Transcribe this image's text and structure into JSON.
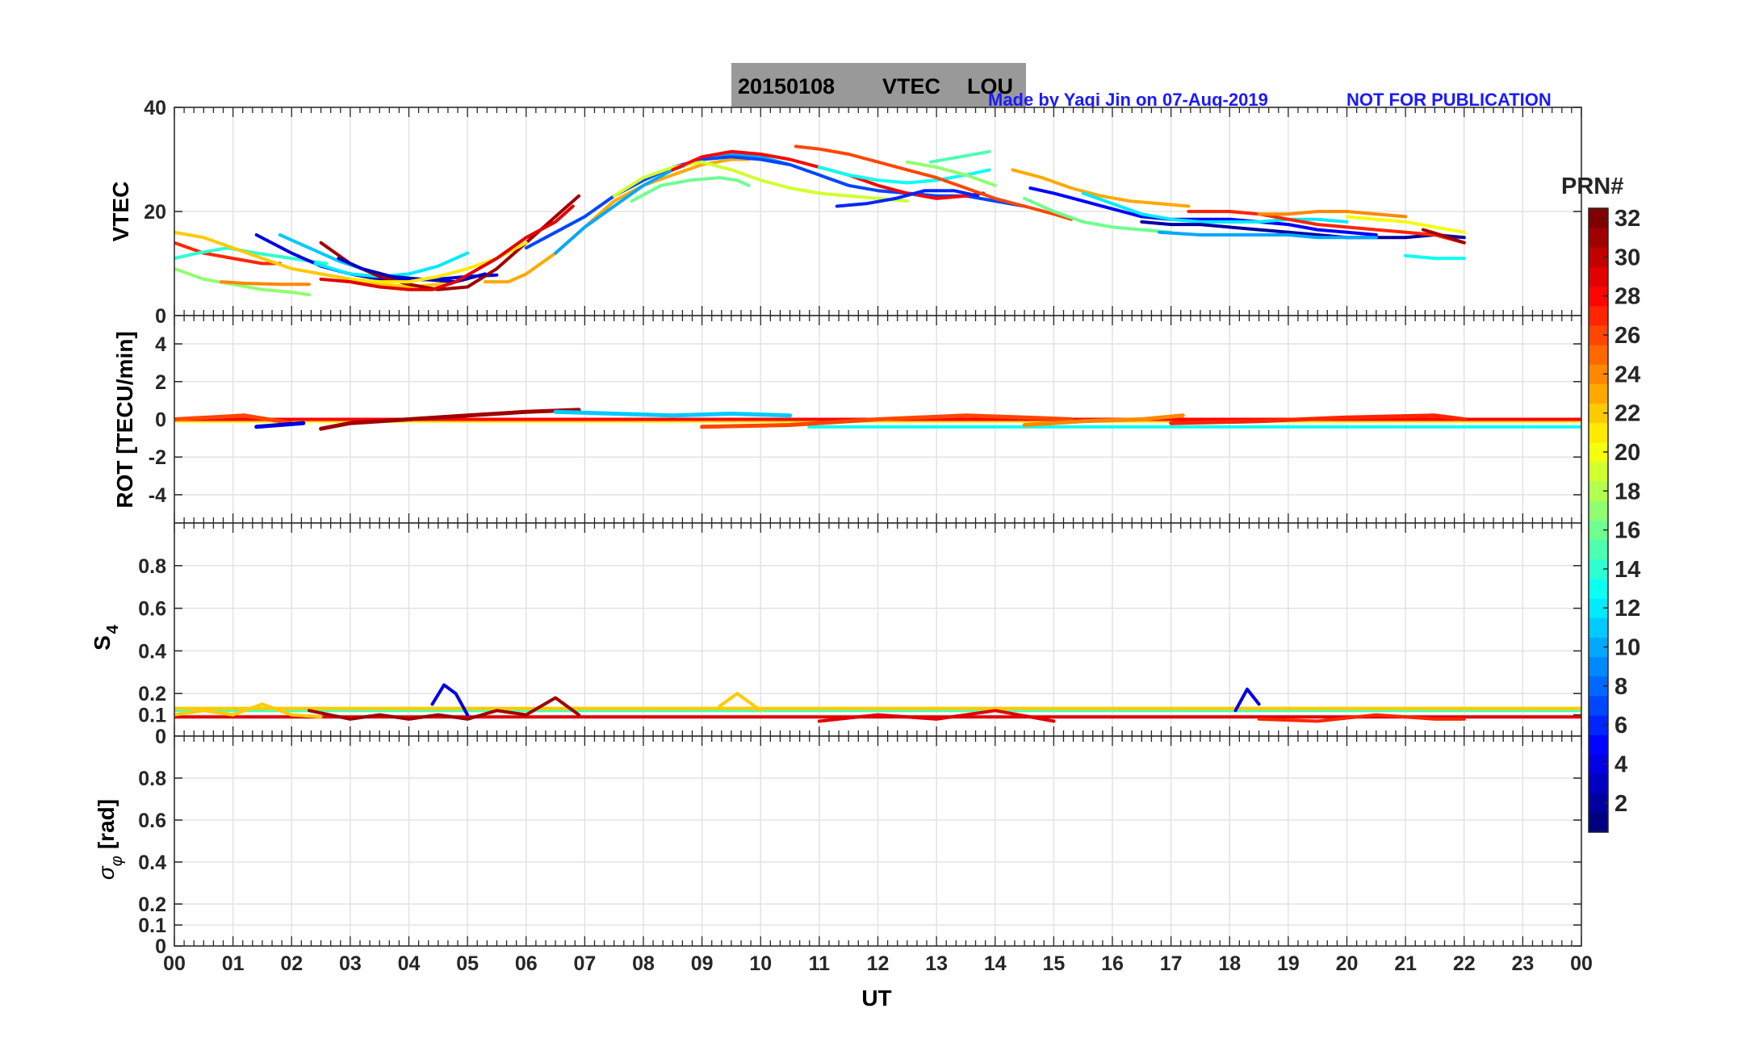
{
  "title": {
    "date": "20150108",
    "product": "VTEC",
    "station": "LOU",
    "credit": "Made by Yaqi Jin on 07-Aug-2019",
    "notice": "NOT FOR PUBLICATION"
  },
  "colorbar": {
    "label": "PRN#",
    "ticks": [
      "2",
      "4",
      "6",
      "8",
      "10",
      "12",
      "14",
      "16",
      "18",
      "20",
      "22",
      "24",
      "26",
      "28",
      "30",
      "32"
    ],
    "range": [
      1,
      32
    ],
    "colormap": "jet"
  },
  "x_axis": {
    "label": "UT",
    "range": [
      0,
      24
    ],
    "ticks": [
      "00",
      "01",
      "02",
      "03",
      "04",
      "05",
      "06",
      "07",
      "08",
      "09",
      "10",
      "11",
      "12",
      "13",
      "14",
      "15",
      "16",
      "17",
      "18",
      "19",
      "20",
      "21",
      "22",
      "23",
      "00"
    ]
  },
  "panels": [
    {
      "id": "vtec",
      "ylabel": "VTEC",
      "ylim": [
        0,
        40
      ],
      "yticks": [
        0,
        20,
        40
      ],
      "ytick_labels": [
        "0",
        "20",
        "40"
      ]
    },
    {
      "id": "rot",
      "ylabel": "ROT [TECU/min]",
      "ylim": [
        -5.5,
        5.5
      ],
      "yticks": [
        -4,
        -2,
        0,
        2,
        4
      ],
      "ytick_labels": [
        "-4",
        "-2",
        "0",
        "2",
        "4"
      ]
    },
    {
      "id": "s4",
      "ylabel": "S",
      "ylabel_sub": "4",
      "ylim": [
        0,
        1
      ],
      "yticks": [
        0,
        0.1,
        0.2,
        0.4,
        0.6,
        0.8
      ],
      "ytick_labels": [
        "0",
        "0.1",
        "0.2",
        "0.4",
        "0.6",
        "0.8"
      ]
    },
    {
      "id": "sigma",
      "ylabel": "σ",
      "ylabel_sub": "φ",
      "ylabel_unit": "[rad]",
      "ylim": [
        0,
        1
      ],
      "yticks": [
        0,
        0.1,
        0.2,
        0.4,
        0.6,
        0.8
      ],
      "ytick_labels": [
        "0",
        "0.1",
        "0.2",
        "0.4",
        "0.6",
        "0.8"
      ]
    }
  ],
  "chart_data": {
    "type": "line",
    "title": "20150108    VTEC  LOU",
    "xlabel": "UT",
    "color_by": "PRN#",
    "vtec_series": [
      {
        "prn": 27,
        "x": [
          0.0,
          0.5,
          1.0,
          1.5,
          1.8
        ],
        "y": [
          14,
          12,
          11,
          10,
          10
        ]
      },
      {
        "prn": 14,
        "x": [
          0.0,
          0.4,
          0.9,
          1.4,
          2.0,
          2.6
        ],
        "y": [
          11,
          12,
          13,
          12,
          11,
          10
        ]
      },
      {
        "prn": 17,
        "x": [
          0.0,
          0.5,
          1.0,
          1.5,
          2.0,
          2.3
        ],
        "y": [
          9,
          7,
          6,
          5,
          4.5,
          4
        ]
      },
      {
        "prn": 22,
        "x": [
          0.0,
          0.5,
          1.0,
          1.5,
          2.0,
          2.5,
          3.0,
          3.5,
          4.0,
          4.5,
          5.0
        ],
        "y": [
          16,
          15,
          13,
          11,
          9,
          8,
          7,
          6,
          5.5,
          6,
          7
        ]
      },
      {
        "prn": 24,
        "x": [
          0.8,
          1.2,
          1.8,
          2.3
        ],
        "y": [
          6.5,
          6.2,
          6,
          6
        ]
      },
      {
        "prn": 4,
        "x": [
          1.4,
          2.0,
          2.5,
          3.0,
          3.5,
          4.0,
          4.5,
          5.0,
          5.5
        ],
        "y": [
          15.5,
          12,
          9.5,
          8,
          7,
          6.8,
          7,
          7.5,
          7.8
        ]
      },
      {
        "prn": 11,
        "x": [
          1.8,
          2.3,
          2.8,
          3.2
        ],
        "y": [
          15.5,
          13,
          10.5,
          9
        ]
      },
      {
        "prn": 12,
        "x": [
          2.4,
          3.0,
          3.5,
          4.0,
          4.5,
          5.0
        ],
        "y": [
          10,
          8,
          7.5,
          8,
          9.5,
          12
        ]
      },
      {
        "prn": 31,
        "x": [
          2.5,
          3.0,
          3.5,
          4.0,
          4.5,
          5.0,
          5.5,
          6.0,
          6.5,
          6.9
        ],
        "y": [
          14,
          10,
          7.5,
          6,
          5,
          5.5,
          9,
          14,
          19,
          23
        ]
      },
      {
        "prn": 3,
        "x": [
          2.8,
          3.2,
          3.7,
          4.2,
          4.8,
          5.3
        ],
        "y": [
          11,
          9,
          7.5,
          7,
          6.5,
          8
        ]
      },
      {
        "prn": 21,
        "x": [
          3.0,
          3.5,
          4.0,
          4.5,
          5.0,
          5.5,
          6.0
        ],
        "y": [
          7,
          6.5,
          6.5,
          7.5,
          9,
          11,
          14
        ]
      },
      {
        "prn": 29,
        "x": [
          2.5,
          3.0,
          3.5,
          4.0,
          4.4,
          4.8,
          5.5,
          6.0,
          6.5,
          6.8
        ],
        "y": [
          7,
          6.5,
          5.5,
          5,
          5,
          6.5,
          11,
          15,
          18,
          21
        ]
      },
      {
        "prn": 23,
        "x": [
          5.3,
          5.7,
          6.0,
          6.5,
          7.0,
          7.5,
          8.0,
          8.5,
          9.0,
          9.5,
          9.8
        ],
        "y": [
          6.5,
          6.5,
          8,
          12,
          17,
          22,
          25,
          27,
          29,
          30,
          30
        ]
      },
      {
        "prn": 10,
        "x": [
          6.5,
          7.0,
          7.5,
          8.0,
          8.5,
          9.0,
          9.5,
          10.0,
          10.5
        ],
        "y": [
          12,
          17,
          21,
          25,
          28,
          30,
          31,
          30.5,
          29
        ]
      },
      {
        "prn": 7,
        "x": [
          6.0,
          6.5,
          7.0,
          7.5,
          8.0,
          8.5,
          9.0,
          9.5,
          10.0,
          10.5,
          11.0,
          11.5,
          12.0,
          12.5,
          13.0,
          13.5,
          14.0,
          14.5
        ],
        "y": [
          13,
          16,
          19,
          23,
          26,
          28.5,
          30,
          30.5,
          30,
          29,
          27,
          25,
          24,
          23.5,
          23,
          23,
          22,
          21
        ]
      },
      {
        "prn": 16,
        "x": [
          7.8,
          8.3,
          8.8,
          9.3,
          9.6,
          9.8
        ],
        "y": [
          22,
          25,
          26,
          26.5,
          26,
          25
        ]
      },
      {
        "prn": 19,
        "x": [
          7.5,
          8.0,
          8.5,
          9.0,
          9.5,
          10.0,
          10.5,
          11.0,
          11.5,
          12.0,
          12.5
        ],
        "y": [
          23,
          26.5,
          28.5,
          29.5,
          28,
          26,
          24.5,
          23.5,
          23,
          22.5,
          22
        ]
      },
      {
        "prn": 28,
        "x": [
          8.5,
          9.0,
          9.5,
          10.0,
          10.5,
          11.0,
          11.5,
          12.0,
          12.5,
          13.0,
          13.5,
          13.8
        ],
        "y": [
          28,
          30.5,
          31.5,
          31,
          30,
          28.5,
          27,
          25,
          23.5,
          22.5,
          23,
          23.5
        ]
      },
      {
        "prn": 6,
        "x": [
          11.3,
          11.8,
          12.3,
          12.8,
          13.3,
          13.7
        ],
        "y": [
          21,
          21.5,
          22.5,
          24,
          24,
          23
        ]
      },
      {
        "prn": 13,
        "x": [
          11.0,
          11.5,
          12.0,
          12.5,
          13.0,
          13.5,
          13.9
        ],
        "y": [
          28.5,
          27,
          26,
          25.5,
          26,
          27,
          28
        ]
      },
      {
        "prn": 15,
        "x": [
          12.9,
          13.4,
          13.9
        ],
        "y": [
          29.5,
          30.5,
          31.5
        ]
      },
      {
        "prn": 17,
        "x": [
          12.5,
          13.0,
          13.5,
          14.0
        ],
        "y": [
          29.5,
          28.5,
          27,
          25
        ]
      },
      {
        "prn": 26,
        "x": [
          10.6,
          11.0,
          11.5,
          12.0,
          12.5,
          13.0,
          13.5,
          14.0,
          14.5,
          15.0,
          15.3
        ],
        "y": [
          32.5,
          32,
          31,
          29.5,
          28,
          26.5,
          24.5,
          22.5,
          21,
          19.5,
          18.5
        ]
      },
      {
        "prn": 23,
        "x": [
          14.3,
          14.8,
          15.3,
          15.8,
          16.3,
          16.8,
          17.3
        ],
        "y": [
          28,
          26.5,
          24.5,
          23,
          22,
          21.5,
          21
        ]
      },
      {
        "prn": 5,
        "x": [
          14.6,
          15.0,
          15.5,
          16.0,
          16.5,
          17.0,
          17.5,
          18.0,
          18.5,
          19.0,
          19.5,
          20.0,
          20.5
        ],
        "y": [
          24.5,
          23.5,
          22,
          20.5,
          19,
          18.5,
          18.5,
          18.5,
          18,
          17.5,
          16.5,
          16,
          15.5
        ]
      },
      {
        "prn": 16,
        "x": [
          14.5,
          15.0,
          15.5,
          16.0,
          16.5,
          17.0
        ],
        "y": [
          22.5,
          20,
          18,
          17,
          16.5,
          16
        ]
      },
      {
        "prn": 12,
        "x": [
          15.5,
          16.0,
          16.5,
          17.0,
          17.5,
          18.0,
          18.5,
          19.0,
          19.5,
          20.0
        ],
        "y": [
          23.5,
          21.5,
          19.5,
          18.5,
          18,
          18,
          18,
          18.5,
          18.5,
          18
        ]
      },
      {
        "prn": 2,
        "x": [
          16.5,
          17.0,
          17.5,
          18.0,
          18.5,
          19.0,
          19.5,
          20.0,
          20.5,
          21.0,
          21.5,
          22.0
        ],
        "y": [
          18,
          17.5,
          17.5,
          17,
          16.5,
          16,
          15.5,
          15,
          15,
          15,
          15.5,
          15
        ]
      },
      {
        "prn": 10,
        "x": [
          16.8,
          17.5,
          18.0,
          18.5,
          19.0,
          19.5,
          20.0,
          20.5
        ],
        "y": [
          16,
          15.5,
          15.5,
          15.5,
          15.5,
          15,
          15,
          15
        ]
      },
      {
        "prn": 27,
        "x": [
          17.3,
          18.0,
          18.5,
          19.0,
          19.5,
          20.0,
          20.5,
          21.0,
          21.5,
          22.0
        ],
        "y": [
          20,
          20,
          19.5,
          18.5,
          17.5,
          17,
          16.5,
          16,
          15.5,
          14
        ]
      },
      {
        "prn": 24,
        "x": [
          18.5,
          19.0,
          19.5,
          20.0,
          20.5,
          21.0
        ],
        "y": [
          19.5,
          19.5,
          20,
          20,
          19.5,
          19
        ]
      },
      {
        "prn": 20,
        "x": [
          20.0,
          20.5,
          21.0,
          21.5,
          22.0
        ],
        "y": [
          19,
          18.5,
          18,
          17,
          16
        ]
      },
      {
        "prn": 13,
        "x": [
          21.0,
          21.5,
          22.0
        ],
        "y": [
          11.5,
          11,
          11
        ]
      },
      {
        "prn": 31,
        "x": [
          21.3,
          21.6,
          22.0
        ],
        "y": [
          16.5,
          15.5,
          14
        ]
      }
    ],
    "rot_baselines": [
      {
        "prn": 13,
        "value": -0.4,
        "x_range": [
          10.8,
          24.0
        ]
      },
      {
        "prn": 20,
        "value": -0.1,
        "x_range": [
          0.0,
          24.0
        ]
      },
      {
        "prn": 22,
        "value": -0.05,
        "x_range": [
          0.0,
          24.0
        ]
      },
      {
        "prn": 28,
        "value": 0.0,
        "x_range": [
          0.0,
          24.0
        ]
      }
    ],
    "rot_series": [
      {
        "prn": 26,
        "x": [
          0.0,
          1.2,
          2.0
        ],
        "y": [
          0,
          0.2,
          -0.2
        ]
      },
      {
        "prn": 4,
        "x": [
          1.4,
          1.8,
          2.2
        ],
        "y": [
          -0.4,
          -0.3,
          -0.2
        ]
      },
      {
        "prn": 31,
        "x": [
          2.5,
          3.0,
          4.0,
          5.0,
          6.0,
          6.9
        ],
        "y": [
          -0.5,
          -0.2,
          0,
          0.2,
          0.4,
          0.5
        ]
      },
      {
        "prn": 11,
        "x": [
          6.5,
          7.5,
          8.5,
          9.5,
          10.5
        ],
        "y": [
          0.4,
          0.3,
          0.2,
          0.3,
          0.2
        ]
      },
      {
        "prn": 26,
        "x": [
          9.0,
          10.5,
          12.0,
          13.5,
          14.5,
          15.3
        ],
        "y": [
          -0.4,
          -0.3,
          0,
          0.2,
          0.1,
          0
        ]
      },
      {
        "prn": 24,
        "x": [
          14.5,
          15.5,
          16.5,
          17.2
        ],
        "y": [
          -0.3,
          -0.1,
          0,
          0.2
        ]
      },
      {
        "prn": 27,
        "x": [
          17.0,
          18.5,
          20.0,
          21.5,
          22.0
        ],
        "y": [
          -0.2,
          -0.1,
          0.1,
          0.2,
          0
        ]
      }
    ],
    "s4_baselines": [
      {
        "prn": 15,
        "value": 0.12,
        "x_range": [
          0.0,
          24.0
        ]
      },
      {
        "prn": 22,
        "value": 0.13,
        "x_range": [
          0.0,
          24.0
        ]
      },
      {
        "prn": 29,
        "value": 0.09,
        "x_range": [
          0.0,
          24.0
        ]
      }
    ],
    "s4_series": [
      {
        "prn": 22,
        "x": [
          0.0,
          0.5,
          1.0,
          1.5,
          2.0,
          2.5
        ],
        "y": [
          0.1,
          0.12,
          0.1,
          0.15,
          0.1,
          0.09
        ]
      },
      {
        "prn": 31,
        "x": [
          2.3,
          3.0,
          3.5,
          4.0,
          4.5,
          5.0,
          5.5,
          6.0,
          6.5,
          6.9
        ],
        "y": [
          0.12,
          0.08,
          0.1,
          0.08,
          0.1,
          0.08,
          0.12,
          0.1,
          0.18,
          0.1
        ]
      },
      {
        "prn": 4,
        "x": [
          4.4,
          4.6,
          4.8,
          5.0
        ],
        "y": [
          0.15,
          0.24,
          0.2,
          0.1
        ]
      },
      {
        "prn": 22,
        "x": [
          9.3,
          9.6,
          10.0
        ],
        "y": [
          0.14,
          0.2,
          0.12
        ]
      },
      {
        "prn": 29,
        "x": [
          11.0,
          12.0,
          13.0,
          14.0,
          15.0
        ],
        "y": [
          0.07,
          0.1,
          0.08,
          0.12,
          0.07
        ]
      },
      {
        "prn": 4,
        "x": [
          18.1,
          18.3,
          18.5
        ],
        "y": [
          0.12,
          0.22,
          0.15
        ]
      },
      {
        "prn": 27,
        "x": [
          18.5,
          19.5,
          20.5,
          21.5,
          22.0
        ],
        "y": [
          0.08,
          0.07,
          0.1,
          0.08,
          0.08
        ]
      }
    ],
    "sigma_series": []
  }
}
